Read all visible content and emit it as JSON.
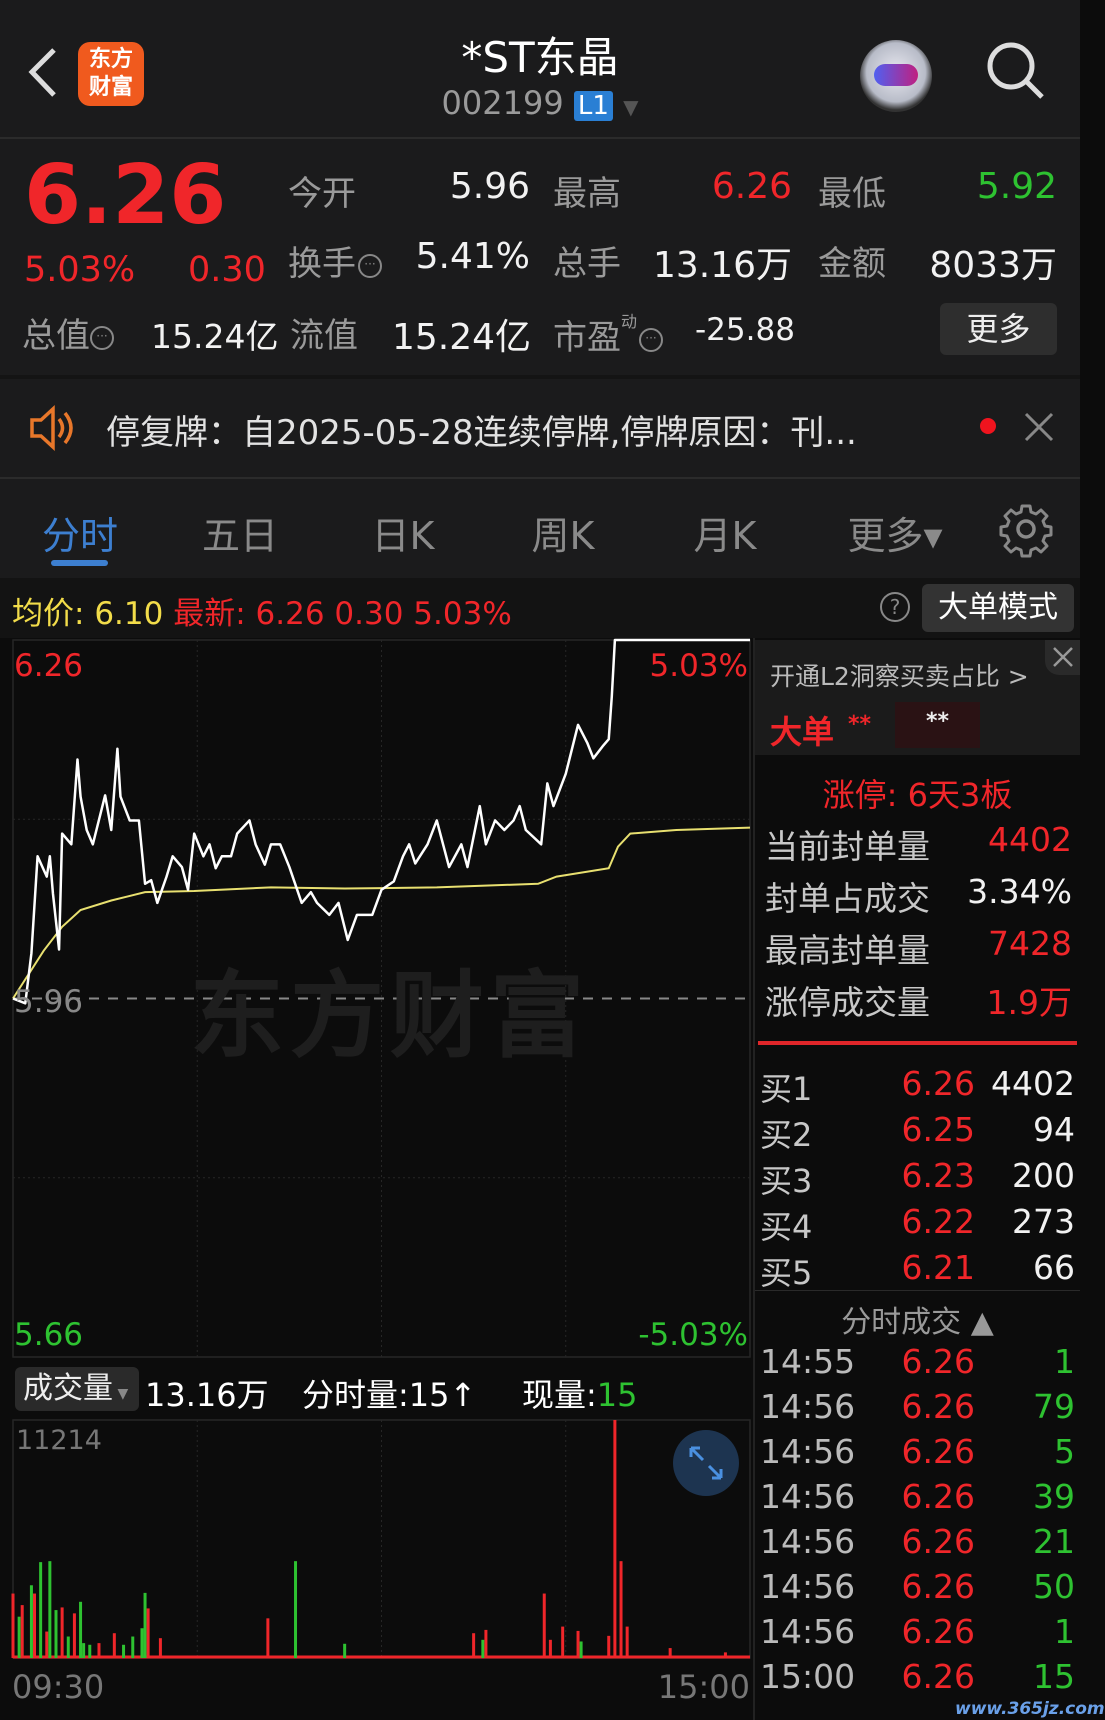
{
  "header": {
    "back": "back-icon",
    "logo_text": "东方财富",
    "title": "*ST东晶",
    "code": "002199",
    "level_badge": "L1"
  },
  "quote": {
    "price": "6.26",
    "change_pct": "5.03%",
    "change": "0.30",
    "open_label": "今开",
    "open": "5.96",
    "high_label": "最高",
    "high": "6.26",
    "low_label": "最低",
    "low": "5.92",
    "turnover_label": "换手",
    "turnover": "5.41%",
    "volume_label": "总手",
    "volume": "13.16万",
    "amount_label": "金额",
    "amount": "8033万",
    "mktcap_label": "总值",
    "mktcap": "15.24亿",
    "float_label": "流值",
    "float_cap": "15.24亿",
    "pe_label": "市盈",
    "pe_sup": "动",
    "pe": "-25.88",
    "more_button": "更多"
  },
  "notice": {
    "text": "停复牌：自2025-05-28连续停牌,停牌原因：刊..."
  },
  "tabs": [
    {
      "label": "分时",
      "active": true
    },
    {
      "label": "五日"
    },
    {
      "label": "日K"
    },
    {
      "label": "周K"
    },
    {
      "label": "月K"
    },
    {
      "label": "更多▾"
    }
  ],
  "infobar": {
    "avg_label": "均价:",
    "avg": "6.10",
    "latest_label": "最新:",
    "latest": "6.26",
    "change": "0.30",
    "change_pct": "5.03%",
    "mode_button": "大单模式"
  },
  "chart_labels": {
    "top_price": "6.26",
    "top_pct": "5.03%",
    "bottom_price": "5.66",
    "bottom_pct": "-5.03%",
    "pre_close": "5.96",
    "watermark": "东方财富"
  },
  "volume_header": {
    "selector": "成交量",
    "total": "13.16万",
    "minute_vol": "分时量:15↑",
    "current_label": "现量:",
    "current": "15",
    "max_label": "11214",
    "start_time": "09:30",
    "end_time": "15:00"
  },
  "colors": {
    "up": "#f0262a",
    "down": "#2ec231",
    "avg_line": "#e8e070",
    "price_line": "#ffffff",
    "accent": "#3d7fd0"
  },
  "chart_data": {
    "type": "line",
    "ylim": [
      5.66,
      6.26
    ],
    "pre_close": 5.96,
    "xlim_minutes": [
      0,
      240
    ],
    "price": [
      [
        0,
        5.96
      ],
      [
        4,
        5.956
      ],
      [
        6,
        5.998
      ],
      [
        8,
        6.079
      ],
      [
        11,
        6.062
      ],
      [
        12,
        6.079
      ],
      [
        13,
        6.048
      ],
      [
        15,
        6.001
      ],
      [
        16,
        6.098
      ],
      [
        19,
        6.089
      ],
      [
        21,
        6.16
      ],
      [
        22,
        6.129
      ],
      [
        24,
        6.101
      ],
      [
        26,
        6.089
      ],
      [
        30,
        6.13
      ],
      [
        32,
        6.101
      ],
      [
        34,
        6.169
      ],
      [
        35,
        6.129
      ],
      [
        38,
        6.109
      ],
      [
        41,
        6.109
      ],
      [
        43,
        6.056
      ],
      [
        45,
        6.059
      ],
      [
        47,
        6.04
      ],
      [
        50,
        6.062
      ],
      [
        52,
        6.079
      ],
      [
        55,
        6.07
      ],
      [
        57,
        6.051
      ],
      [
        59,
        6.098
      ],
      [
        62,
        6.079
      ],
      [
        64,
        6.089
      ],
      [
        66,
        6.069
      ],
      [
        68,
        6.079
      ],
      [
        71,
        6.079
      ],
      [
        73,
        6.098
      ],
      [
        77,
        6.109
      ],
      [
        79,
        6.089
      ],
      [
        82,
        6.072
      ],
      [
        84,
        6.089
      ],
      [
        87,
        6.089
      ],
      [
        90,
        6.07
      ],
      [
        94,
        6.04
      ],
      [
        97,
        6.049
      ],
      [
        99,
        6.04
      ],
      [
        103,
        6.03
      ],
      [
        106,
        6.04
      ],
      [
        109,
        6.009
      ],
      [
        112,
        6.03
      ],
      [
        117,
        6.03
      ],
      [
        120,
        6.051
      ],
      [
        124,
        6.058
      ],
      [
        127,
        6.079
      ],
      [
        129,
        6.089
      ],
      [
        131,
        6.073
      ],
      [
        135,
        6.089
      ],
      [
        138,
        6.109
      ],
      [
        142,
        6.07
      ],
      [
        146,
        6.089
      ],
      [
        148,
        6.07
      ],
      [
        152,
        6.121
      ],
      [
        154,
        6.089
      ],
      [
        157,
        6.109
      ],
      [
        160,
        6.101
      ],
      [
        163,
        6.109
      ],
      [
        165,
        6.121
      ],
      [
        167,
        6.101
      ],
      [
        172,
        6.089
      ],
      [
        174,
        6.14
      ],
      [
        176,
        6.121
      ],
      [
        180,
        6.148
      ],
      [
        184,
        6.189
      ],
      [
        187,
        6.174
      ],
      [
        189,
        6.161
      ],
      [
        192,
        6.171
      ],
      [
        194,
        6.177
      ],
      [
        195,
        6.213
      ],
      [
        196,
        6.26
      ],
      [
        240,
        6.26
      ]
    ],
    "avg_price": [
      [
        0,
        5.96
      ],
      [
        10,
        6.0
      ],
      [
        16,
        6.02
      ],
      [
        22,
        6.034
      ],
      [
        32,
        6.042
      ],
      [
        43,
        6.049
      ],
      [
        59,
        6.05
      ],
      [
        84,
        6.053
      ],
      [
        108,
        6.052
      ],
      [
        138,
        6.053
      ],
      [
        171,
        6.056
      ],
      [
        177,
        6.062
      ],
      [
        194,
        6.069
      ],
      [
        197,
        6.087
      ],
      [
        201,
        6.098
      ],
      [
        216,
        6.101
      ],
      [
        240,
        6.103
      ]
    ],
    "volume_ylim": [
      0,
      11214
    ],
    "volume": [
      [
        0,
        3037,
        "up"
      ],
      [
        2,
        1947,
        "down"
      ],
      [
        3,
        2492,
        "up"
      ],
      [
        6,
        3427,
        "down"
      ],
      [
        7,
        3037,
        "up"
      ],
      [
        9,
        4517,
        "down"
      ],
      [
        11,
        1246,
        "up"
      ],
      [
        12,
        4563,
        "down"
      ],
      [
        14,
        2258,
        "down"
      ],
      [
        16,
        2383,
        "up"
      ],
      [
        18,
        1012,
        "down"
      ],
      [
        20,
        2103,
        "up"
      ],
      [
        22,
        2648,
        "down"
      ],
      [
        23,
        701,
        "down"
      ],
      [
        25,
        623,
        "down"
      ],
      [
        28,
        701,
        "up"
      ],
      [
        33,
        1168,
        "up"
      ],
      [
        36,
        623,
        "down"
      ],
      [
        39,
        1012,
        "down"
      ],
      [
        42,
        1402,
        "down"
      ],
      [
        43,
        3068,
        "down"
      ],
      [
        44,
        2336,
        "up"
      ],
      [
        48,
        934,
        "up"
      ],
      [
        83,
        1869,
        "up"
      ],
      [
        92,
        4563,
        "down"
      ],
      [
        108,
        670,
        "down"
      ],
      [
        150,
        1168,
        "up"
      ],
      [
        153,
        857,
        "down"
      ],
      [
        154,
        1324,
        "up"
      ],
      [
        173,
        3037,
        "up"
      ],
      [
        175,
        857,
        "up"
      ],
      [
        179,
        1480,
        "up"
      ],
      [
        184,
        1277,
        "up"
      ],
      [
        185,
        779,
        "down"
      ],
      [
        194,
        1044,
        "up"
      ],
      [
        196,
        11214,
        "up"
      ],
      [
        198,
        4563,
        "up"
      ],
      [
        200,
        1480,
        "up"
      ],
      [
        214,
        467,
        "up"
      ],
      [
        232,
        265,
        "up"
      ]
    ]
  },
  "l2": {
    "banner": "开通L2洞察买卖占比 >",
    "big_order_label": "大单",
    "buy_mask": "**",
    "sell_mask": "**"
  },
  "limit_up": {
    "title": "涨停: 6天3板",
    "rows": [
      {
        "label": "当前封单量",
        "value": "4402",
        "color": "up"
      },
      {
        "label": "封单占成交",
        "value": "3.34%",
        "color": "white"
      },
      {
        "label": "最高封单量",
        "value": "7428",
        "color": "up"
      },
      {
        "label": "涨停成交量",
        "value": "1.9万",
        "color": "up"
      }
    ]
  },
  "order_book": [
    {
      "label": "买1",
      "price": "6.26",
      "vol": "4402"
    },
    {
      "label": "买2",
      "price": "6.25",
      "vol": "94"
    },
    {
      "label": "买3",
      "price": "6.23",
      "vol": "200"
    },
    {
      "label": "买4",
      "price": "6.22",
      "vol": "273"
    },
    {
      "label": "买5",
      "price": "6.21",
      "vol": "66"
    }
  ],
  "ticks": {
    "title": "分时成交 ▲",
    "rows": [
      {
        "time": "14:55",
        "price": "6.26",
        "vol": "1"
      },
      {
        "time": "14:56",
        "price": "6.26",
        "vol": "79"
      },
      {
        "time": "14:56",
        "price": "6.26",
        "vol": "5"
      },
      {
        "time": "14:56",
        "price": "6.26",
        "vol": "39"
      },
      {
        "time": "14:56",
        "price": "6.26",
        "vol": "21"
      },
      {
        "time": "14:56",
        "price": "6.26",
        "vol": "50"
      },
      {
        "time": "14:56",
        "price": "6.26",
        "vol": "1"
      },
      {
        "time": "15:00",
        "price": "6.26",
        "vol": "15"
      }
    ]
  },
  "site_watermark": "www.365jz.com"
}
